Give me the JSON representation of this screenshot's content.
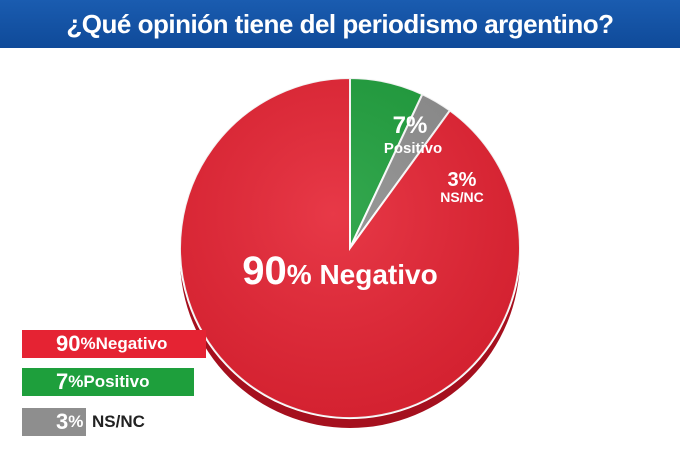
{
  "title": "¿Qué opinión tiene del periodismo argentino?",
  "colors": {
    "header": "#1557ab",
    "negativo": "#e52333",
    "negativo_side": "#a5101e",
    "positivo": "#1e9f3c",
    "nsnc": "#8e8e8e",
    "text_white": "#ffffff",
    "text_dark": "#222222"
  },
  "chart_data": {
    "type": "pie",
    "title": "¿Qué opinión tiene del periodismo argentino?",
    "slices": [
      {
        "label": "Negativo",
        "value": 90,
        "pct_text": "90%",
        "color": "#e52333"
      },
      {
        "label": "Positivo",
        "value": 7,
        "pct_text": "7%",
        "color": "#1e9f3c"
      },
      {
        "label": "NS/NC",
        "value": 3,
        "pct_text": "3%",
        "color": "#8e8e8e"
      }
    ],
    "legend": [
      {
        "pct": "90",
        "sign": "%",
        "label": "Negativo"
      },
      {
        "pct": "7",
        "sign": "%",
        "label": "Positivo"
      },
      {
        "pct": "3",
        "sign": "%",
        "label": "NS/NC"
      }
    ],
    "legend_position": "bottom-left"
  }
}
